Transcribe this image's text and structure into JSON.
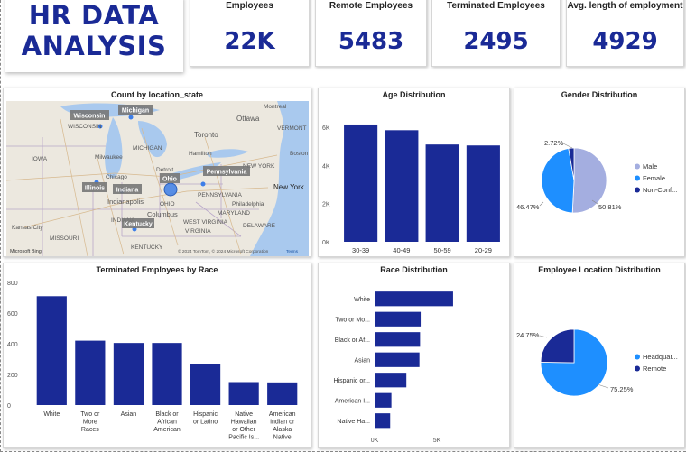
{
  "header": {
    "title": "HR DATA\nANALYSIS"
  },
  "kpis": [
    {
      "label": "Employees",
      "value": "22K"
    },
    {
      "label": "Remote Employees",
      "value": "5483"
    },
    {
      "label": "Terminated Employees",
      "value": "2495"
    },
    {
      "label": "Avg. length of employment",
      "value": "4929"
    }
  ],
  "map": {
    "title": "Count by location_state",
    "state_tags": [
      "Wisconsin",
      "Michigan",
      "Illinois",
      "Indiana",
      "Ohio",
      "Pennsylvania",
      "Kentucky"
    ],
    "place_labels": [
      "Montreal",
      "Ottawa",
      "Toronto",
      "VERMONT",
      "WISCONSIN",
      "MICHIGAN",
      "IOWA",
      "Milwaukee",
      "Hamilton",
      "NEW YORK",
      "Chicago",
      "Detroit",
      "Boston",
      "OHIO",
      "PENNSYLVANIA",
      "New York",
      "Philadelphia",
      "Indianapolis",
      "INDIANA",
      "Columbus",
      "MARYLAND",
      "Kansas City",
      "MISSOURI",
      "KENTUCKY",
      "WEST VIRGINIA",
      "VIRGINIA",
      "DELAWARE"
    ],
    "footer": "© 2024 TomTom, © 2024 Microsoft Corporation",
    "footer_link": "Terms",
    "logo": "Microsoft Bing",
    "colors": {
      "water": "#a9c9ee",
      "land": "#ece8df",
      "bubble": "#3d7ee8"
    }
  },
  "age_chart": {
    "title": "Age Distribution",
    "chart_data": {
      "type": "bar",
      "categories": [
        "30-39",
        "40-49",
        "50-59",
        "20-29"
      ],
      "values": [
        6150,
        5850,
        5100,
        5050
      ],
      "ylim": [
        0,
        7000
      ],
      "yticks": [
        "0K",
        "2K",
        "4K",
        "6K"
      ],
      "color": "#1a2a96"
    }
  },
  "gender_chart": {
    "title": "Gender Distribution",
    "chart_data": {
      "type": "pie",
      "labels": [
        "Male",
        "Female",
        "Non-Conf..."
      ],
      "values": [
        50.81,
        46.47,
        2.72
      ],
      "data_labels": [
        "50.81%",
        "46.47%",
        "2.72%"
      ],
      "colors": [
        "#a4aee0",
        "#1e8fff",
        "#1a2a96"
      ]
    }
  },
  "race_term_chart": {
    "title": "Terminated Employees by Race",
    "chart_data": {
      "type": "bar",
      "categories": [
        "White",
        "Two or More Races",
        "Asian",
        "Black or African American",
        "Hispanic or Latino",
        "Native Hawaiian or Other Pacific Is...",
        "American Indian or Alaska Native"
      ],
      "values": [
        710,
        420,
        405,
        405,
        265,
        150,
        148
      ],
      "ylim": [
        0,
        800
      ],
      "yticks": [
        "0",
        "200",
        "400",
        "600",
        "800"
      ],
      "color": "#1a2a96"
    }
  },
  "race_chart": {
    "title": "Race Distribution",
    "chart_data": {
      "type": "bar",
      "orientation": "horizontal",
      "categories": [
        "White",
        "Two or Mo...",
        "Black or Af...",
        "Asian",
        "Hispanic or...",
        "American I...",
        "Native Ha..."
      ],
      "values": [
        6300,
        3700,
        3650,
        3600,
        2550,
        1350,
        1250
      ],
      "xlim": [
        0,
        10000
      ],
      "xticks": [
        "0K",
        "5K"
      ],
      "color": "#1a2a96"
    }
  },
  "location_chart": {
    "title": "Employee Location Distribution",
    "chart_data": {
      "type": "pie",
      "labels": [
        "Headquar...",
        "Remote"
      ],
      "values": [
        75.25,
        24.75
      ],
      "data_labels": [
        "75.25%",
        "24.75%"
      ],
      "colors": [
        "#1e8fff",
        "#1a2a96"
      ]
    }
  }
}
